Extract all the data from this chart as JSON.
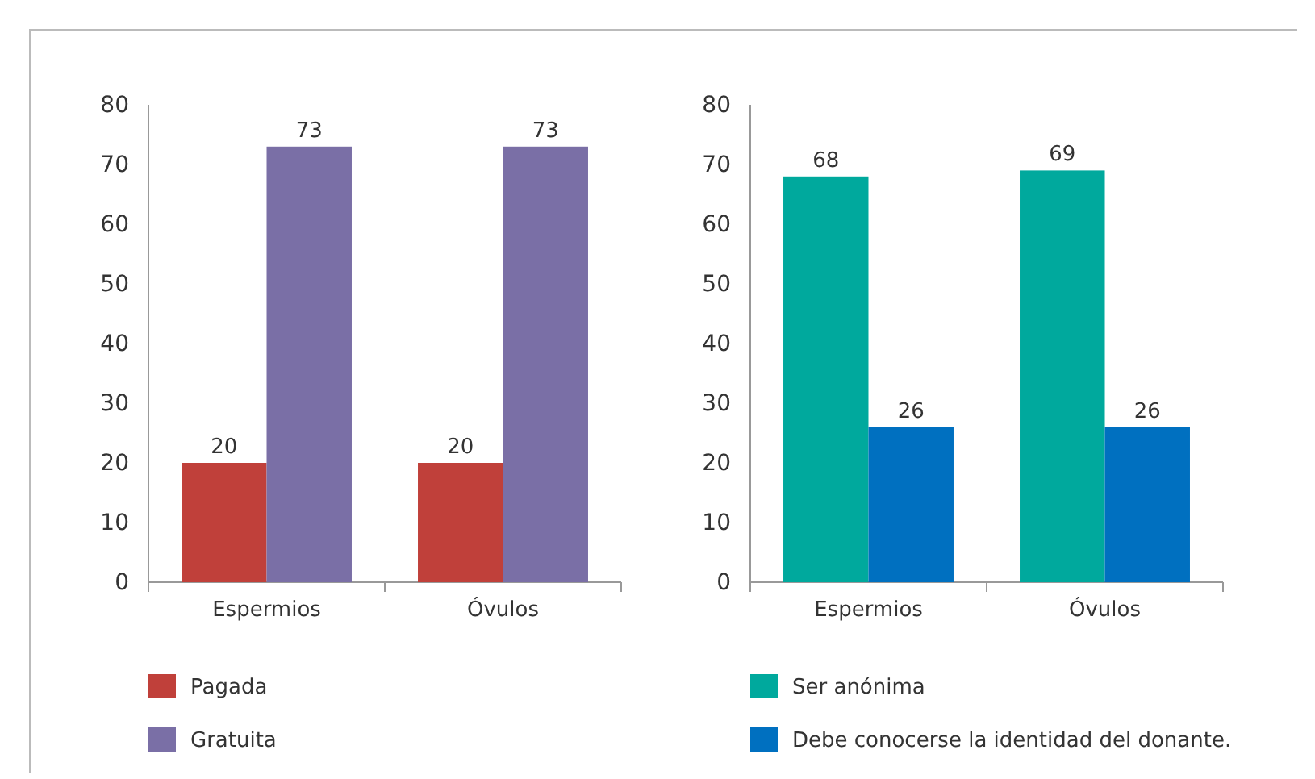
{
  "chart_data": [
    {
      "type": "bar",
      "categories": [
        "Espermios",
        "Óvulos"
      ],
      "ylim": [
        0,
        80
      ],
      "yticks": [
        0,
        10,
        20,
        30,
        40,
        50,
        60,
        70,
        80
      ],
      "grid": false,
      "legend": "bottom",
      "data_labels": true,
      "series": [
        {
          "name": "Pagada",
          "color": "#c0403a",
          "values": [
            20,
            20
          ]
        },
        {
          "name": "Gratuita",
          "color": "#7a6fa6",
          "values": [
            73,
            73
          ]
        }
      ]
    },
    {
      "type": "bar",
      "categories": [
        "Espermios",
        "Óvulos"
      ],
      "ylim": [
        0,
        80
      ],
      "yticks": [
        0,
        10,
        20,
        30,
        40,
        50,
        60,
        70,
        80
      ],
      "grid": false,
      "legend": "bottom",
      "data_labels": true,
      "series": [
        {
          "name": "Ser anónima",
          "color": "#00a99d",
          "values": [
            68,
            69
          ]
        },
        {
          "name": "Debe conocerse la identidad del donante.",
          "color": "#0070c0",
          "values": [
            26,
            26
          ]
        }
      ]
    }
  ]
}
